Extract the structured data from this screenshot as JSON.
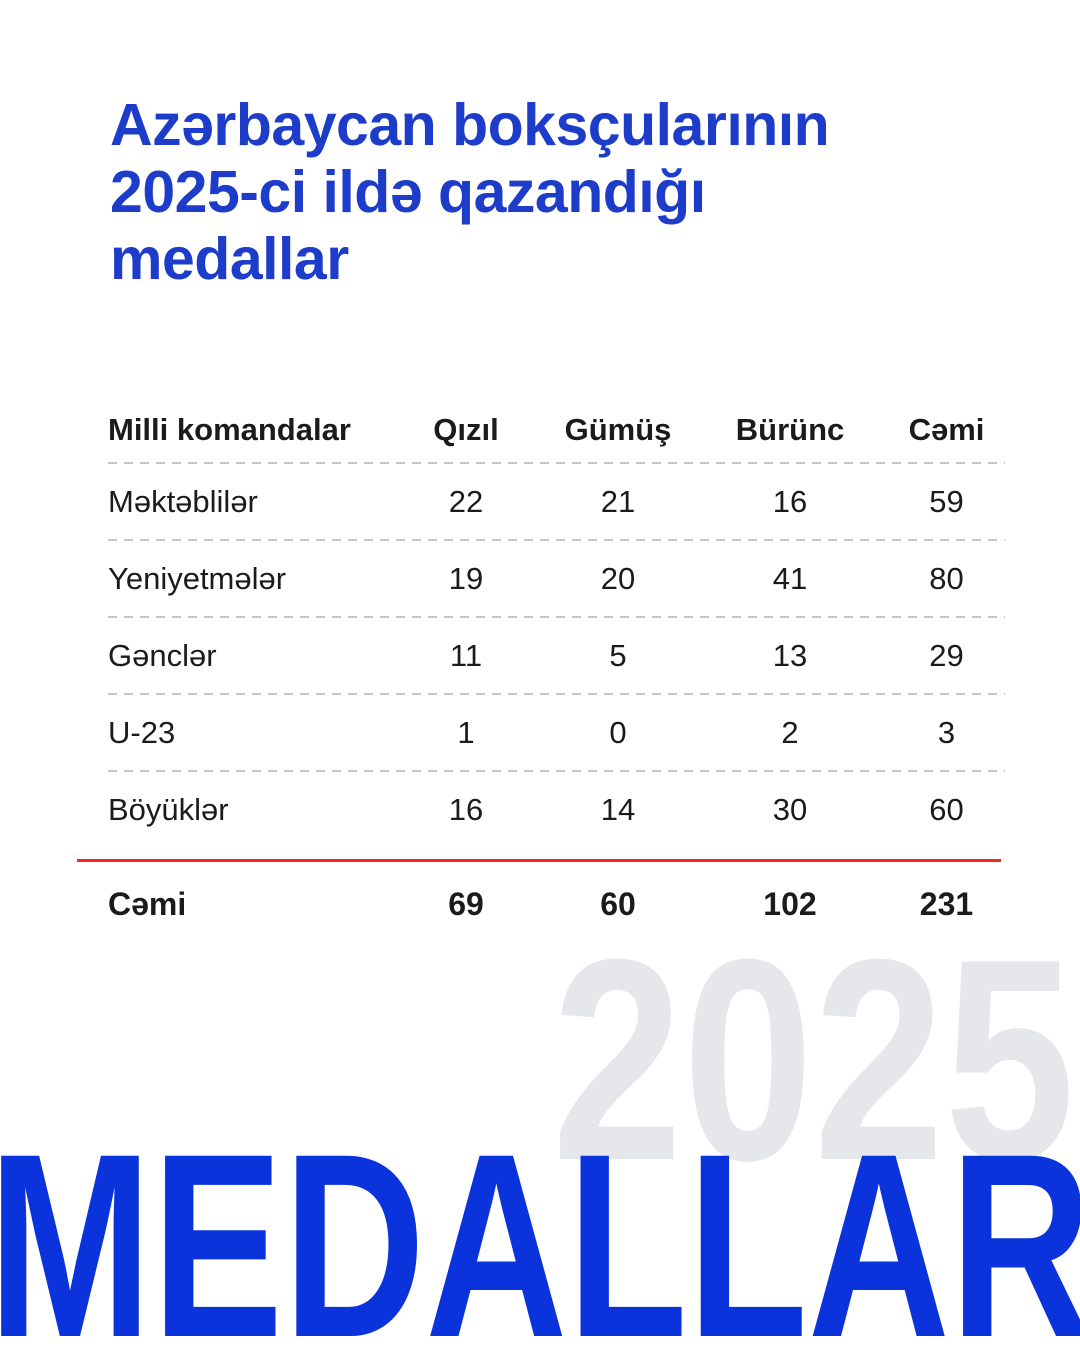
{
  "title": {
    "lines": [
      "Azərbaycan boksçularının",
      "2025-ci ildə qazandığı",
      "medallar"
    ]
  },
  "watermark": {
    "year": "2025"
  },
  "footer": {
    "word": "MEDALLAR"
  },
  "colors": {
    "title_blue": "#1d3cca",
    "footer_blue": "#0b33dc",
    "watermark_gray": "#e5e7ea",
    "divider_red": "#ee2a21",
    "dash_gray": "#c6c6c6",
    "text": "#1b1b1b"
  },
  "chart_data": {
    "type": "table",
    "title": "Azərbaycan boksçularının 2025-ci ildə qazandığı medallar",
    "columns": [
      "Milli komandalar",
      "Qızıl",
      "Gümüş",
      "Bürünc",
      "Cəmi"
    ],
    "rows": [
      [
        "Məktəblilər",
        22,
        21,
        16,
        59
      ],
      [
        "Yeniyetmələr",
        19,
        20,
        41,
        80
      ],
      [
        "Gənclər",
        11,
        5,
        13,
        29
      ],
      [
        "U-23",
        1,
        0,
        2,
        3
      ],
      [
        "Böyüklər",
        16,
        14,
        30,
        60
      ]
    ],
    "total_row": [
      "Cəmi",
      69,
      60,
      102,
      231
    ]
  }
}
